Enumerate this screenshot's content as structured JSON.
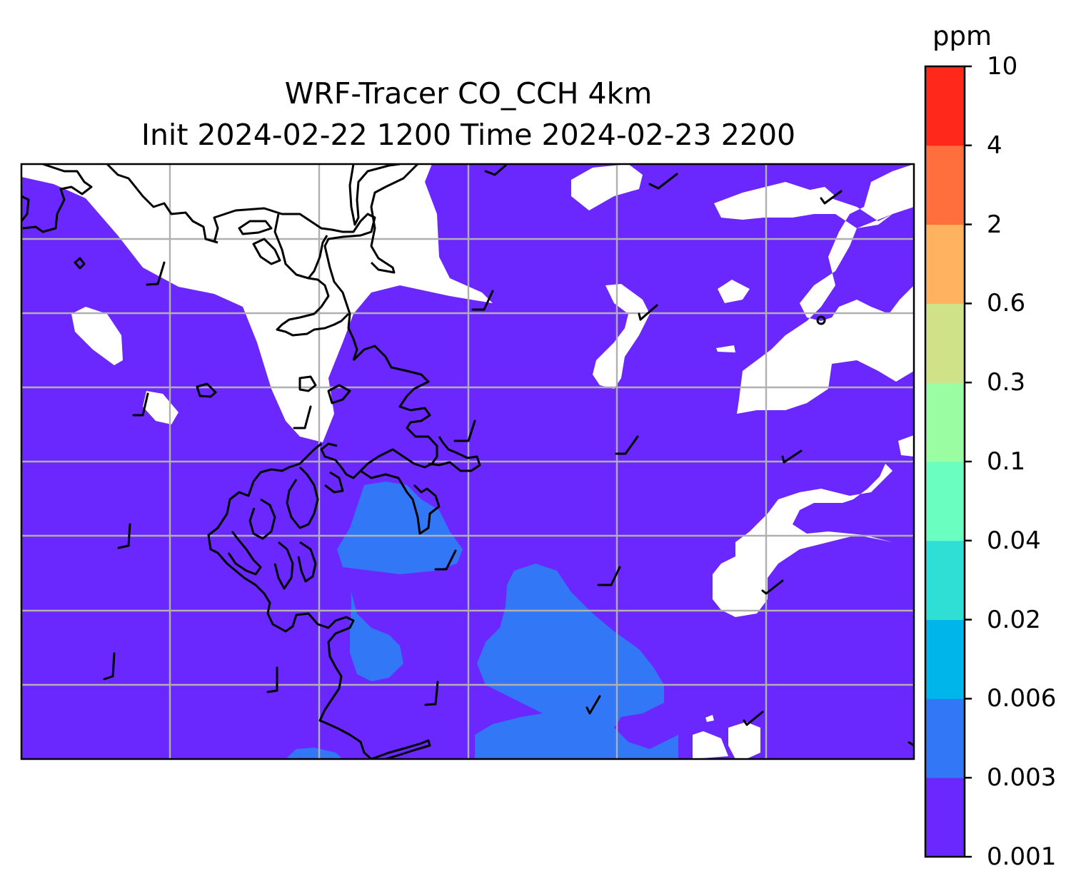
{
  "title": {
    "line1": "WRF-Tracer CO_CCH 4km",
    "line2": "Init 2024-02-22 1200 Time 2024-02-23 2200"
  },
  "colorbar": {
    "unit": "ppm",
    "levels": [
      "0.001",
      "0.003",
      "0.006",
      "0.02",
      "0.04",
      "0.1",
      "0.3",
      "0.6",
      "2",
      "4",
      "10"
    ],
    "colors": [
      "#6a28ff",
      "#3277f5",
      "#00b5ea",
      "#2fdfd6",
      "#6affc1",
      "#9bfda1",
      "#d0e288",
      "#ffb260",
      "#ff6f3e",
      "#ff281a"
    ]
  },
  "map": {
    "background_color": "#6a28ff",
    "below_range_color": "#ffffff",
    "secondary_fill_color": "#3277f5",
    "gridline_color": "#b0b0b0",
    "coastline_color": "#000000"
  }
}
